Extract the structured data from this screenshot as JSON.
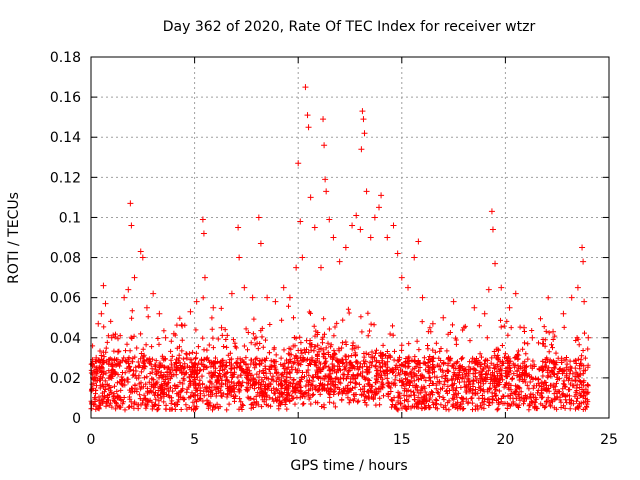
{
  "chart_data": {
    "type": "scatter",
    "title": "Day 362 of 2020, Rate Of TEC Index for receiver wtzr",
    "xlabel": "GPS time / hours",
    "ylabel": "ROTI / TECUs",
    "xlim": [
      0,
      25
    ],
    "ylim": [
      0,
      0.18
    ],
    "xticks": [
      "0",
      "5",
      "10",
      "15",
      "20",
      "25"
    ],
    "yticks": [
      "0",
      "0.02",
      "0.04",
      "0.06",
      "0.08",
      "0.1",
      "0.12",
      "0.14",
      "0.16",
      "0.18"
    ],
    "grid": true,
    "marker": "+",
    "color": "#ff0000",
    "series": [
      {
        "values": [
          [
            0.1,
            0.02
          ],
          [
            0.25,
            0.03
          ],
          [
            0.35,
            0.047
          ],
          [
            0.5,
            0.052
          ],
          [
            0.6,
            0.066
          ],
          [
            0.7,
            0.057
          ],
          [
            1.0,
            0.04
          ],
          [
            1.3,
            0.033
          ],
          [
            1.6,
            0.06
          ],
          [
            1.8,
            0.064
          ],
          [
            1.9,
            0.107
          ],
          [
            1.95,
            0.096
          ],
          [
            2.1,
            0.07
          ],
          [
            2.4,
            0.083
          ],
          [
            2.5,
            0.08
          ],
          [
            2.7,
            0.055
          ],
          [
            3.0,
            0.062
          ],
          [
            3.3,
            0.052
          ],
          [
            3.6,
            0.04
          ],
          [
            4.0,
            0.042
          ],
          [
            4.4,
            0.046
          ],
          [
            4.8,
            0.053
          ],
          [
            5.1,
            0.058
          ],
          [
            5.4,
            0.099
          ],
          [
            5.45,
            0.092
          ],
          [
            5.5,
            0.07
          ],
          [
            5.9,
            0.055
          ],
          [
            6.3,
            0.045
          ],
          [
            6.8,
            0.062
          ],
          [
            7.1,
            0.095
          ],
          [
            7.15,
            0.08
          ],
          [
            7.4,
            0.065
          ],
          [
            7.8,
            0.06
          ],
          [
            8.1,
            0.1
          ],
          [
            8.2,
            0.087
          ],
          [
            8.5,
            0.06
          ],
          [
            8.9,
            0.058
          ],
          [
            9.3,
            0.065
          ],
          [
            9.6,
            0.06
          ],
          [
            9.9,
            0.075
          ],
          [
            10.0,
            0.127
          ],
          [
            10.1,
            0.098
          ],
          [
            10.2,
            0.08
          ],
          [
            10.35,
            0.165
          ],
          [
            10.45,
            0.151
          ],
          [
            10.5,
            0.145
          ],
          [
            10.6,
            0.11
          ],
          [
            10.8,
            0.095
          ],
          [
            11.1,
            0.075
          ],
          [
            11.2,
            0.149
          ],
          [
            11.25,
            0.136
          ],
          [
            11.3,
            0.119
          ],
          [
            11.35,
            0.113
          ],
          [
            11.5,
            0.099
          ],
          [
            11.7,
            0.09
          ],
          [
            12.0,
            0.078
          ],
          [
            12.3,
            0.085
          ],
          [
            12.6,
            0.096
          ],
          [
            12.8,
            0.101
          ],
          [
            13.0,
            0.094
          ],
          [
            13.05,
            0.134
          ],
          [
            13.1,
            0.153
          ],
          [
            13.15,
            0.149
          ],
          [
            13.2,
            0.142
          ],
          [
            13.3,
            0.113
          ],
          [
            13.5,
            0.09
          ],
          [
            13.7,
            0.1
          ],
          [
            13.9,
            0.105
          ],
          [
            14.0,
            0.111
          ],
          [
            14.3,
            0.09
          ],
          [
            14.6,
            0.096
          ],
          [
            14.8,
            0.082
          ],
          [
            15.0,
            0.07
          ],
          [
            15.3,
            0.065
          ],
          [
            15.6,
            0.08
          ],
          [
            15.8,
            0.088
          ],
          [
            16.0,
            0.06
          ],
          [
            16.5,
            0.047
          ],
          [
            17.0,
            0.05
          ],
          [
            17.5,
            0.058
          ],
          [
            18.0,
            0.045
          ],
          [
            18.5,
            0.055
          ],
          [
            19.0,
            0.052
          ],
          [
            19.2,
            0.064
          ],
          [
            19.35,
            0.103
          ],
          [
            19.4,
            0.094
          ],
          [
            19.5,
            0.077
          ],
          [
            19.8,
            0.065
          ],
          [
            20.2,
            0.055
          ],
          [
            20.5,
            0.062
          ],
          [
            20.9,
            0.045
          ],
          [
            21.3,
            0.04
          ],
          [
            21.8,
            0.037
          ],
          [
            22.3,
            0.043
          ],
          [
            22.8,
            0.052
          ],
          [
            23.2,
            0.06
          ],
          [
            23.5,
            0.065
          ],
          [
            23.7,
            0.085
          ],
          [
            23.75,
            0.078
          ],
          [
            23.8,
            0.058
          ],
          [
            24.0,
            0.04
          ]
        ]
      }
    ]
  }
}
